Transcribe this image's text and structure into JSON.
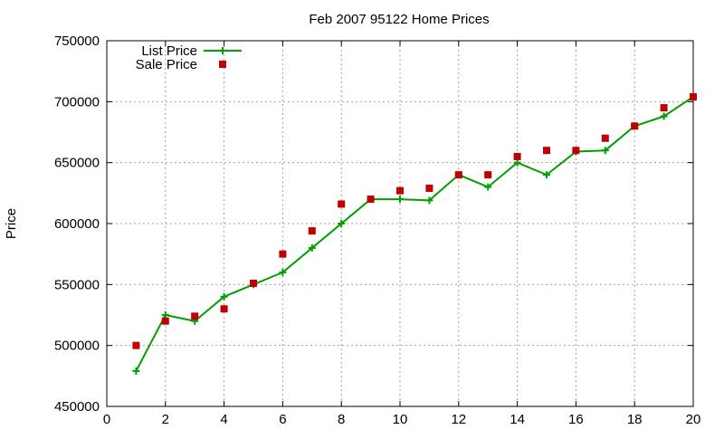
{
  "chart_data": {
    "type": "line",
    "title": "Feb 2007 95122 Home Prices",
    "xlabel": "",
    "ylabel": "Price",
    "xlim": [
      0,
      20
    ],
    "ylim": [
      450000,
      750000
    ],
    "xticks": [
      0,
      2,
      4,
      6,
      8,
      10,
      12,
      14,
      16,
      18,
      20
    ],
    "yticks": [
      450000,
      500000,
      550000,
      600000,
      650000,
      700000,
      750000
    ],
    "grid": true,
    "legend_position": "top-left",
    "series": [
      {
        "name": "List Price",
        "style": "line-with-plus-markers",
        "color": "#00a000",
        "x": [
          1,
          2,
          3,
          4,
          5,
          6,
          7,
          8,
          9,
          10,
          11,
          12,
          13,
          14,
          15,
          16,
          17,
          18,
          19,
          20
        ],
        "y": [
          479000,
          525000,
          520000,
          540000,
          550000,
          560000,
          580000,
          600000,
          620000,
          620000,
          619000,
          640000,
          630000,
          650000,
          640000,
          659000,
          660000,
          680000,
          688000,
          704000
        ]
      },
      {
        "name": "Sale Price",
        "style": "square-points",
        "color": "#c00000",
        "x": [
          1,
          2,
          3,
          4,
          5,
          6,
          7,
          8,
          9,
          10,
          11,
          12,
          13,
          14,
          15,
          16,
          17,
          18,
          19,
          20
        ],
        "y": [
          500000,
          520000,
          524000,
          530000,
          551000,
          575000,
          594000,
          616000,
          620000,
          627000,
          629000,
          640000,
          640000,
          655000,
          660000,
          660000,
          670000,
          680000,
          695000,
          704000
        ]
      }
    ]
  }
}
